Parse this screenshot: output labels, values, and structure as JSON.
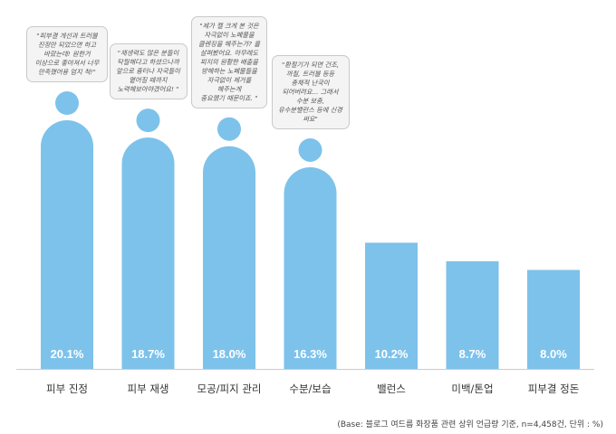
{
  "chart_data": {
    "type": "bar",
    "categories": [
      "피부 진정",
      "피부 재생",
      "모공/피지 관리",
      "수분/보습",
      "밸런스",
      "미백/톤업",
      "피부결 정돈"
    ],
    "values": [
      20.1,
      18.7,
      18.0,
      16.3,
      10.2,
      8.7,
      8.0
    ],
    "value_labels": [
      "20.1%",
      "18.7%",
      "18.0%",
      "16.3%",
      "10.2%",
      "8.7%",
      "8.0%"
    ],
    "ylim": [
      0,
      22
    ],
    "grid": false,
    "legend": "none",
    "bar_color": "#7dc2ea",
    "axis_color": "#cccccc",
    "quotes": [
      {
        "text": "\"피부결 개선과 트러블\n진정만 되었으면 하고\n바랐는데! 원한거\n이상으로 좋아져서 너무\n만족했어용 엄지 척!\""
      },
      {
        "text": "\"재생력도 많은 분들이\n탁월해다고 하셨으나까\n앞으로 흉터나 자국들이\n옅어질 때까지\n노력해보아야겠어요! \""
      },
      {
        "text": "\"제가 젤 크게 본 것은\n자극없이 노폐물을\n클렌징을 해주는가? 를\n살펴봤어요. 아무래도\n피지의 원활한 배출을\n방해하는 노폐물들을\n자극없이 제거를\n해주는게\n중요했기 때문이죠. \""
      },
      {
        "text": "\"환절기가 되면 건조,\n까칠, 트러블 등등\n총체적 난국이\n되어버려요... 그래서\n수분 보충,\n유수분밸런스 등에 신경\n써요\""
      }
    ]
  },
  "footnote": "(Base: 블로그 여드름 화장품 관련 상위 언급량 기준, n=4,458건, 단위 : %)"
}
